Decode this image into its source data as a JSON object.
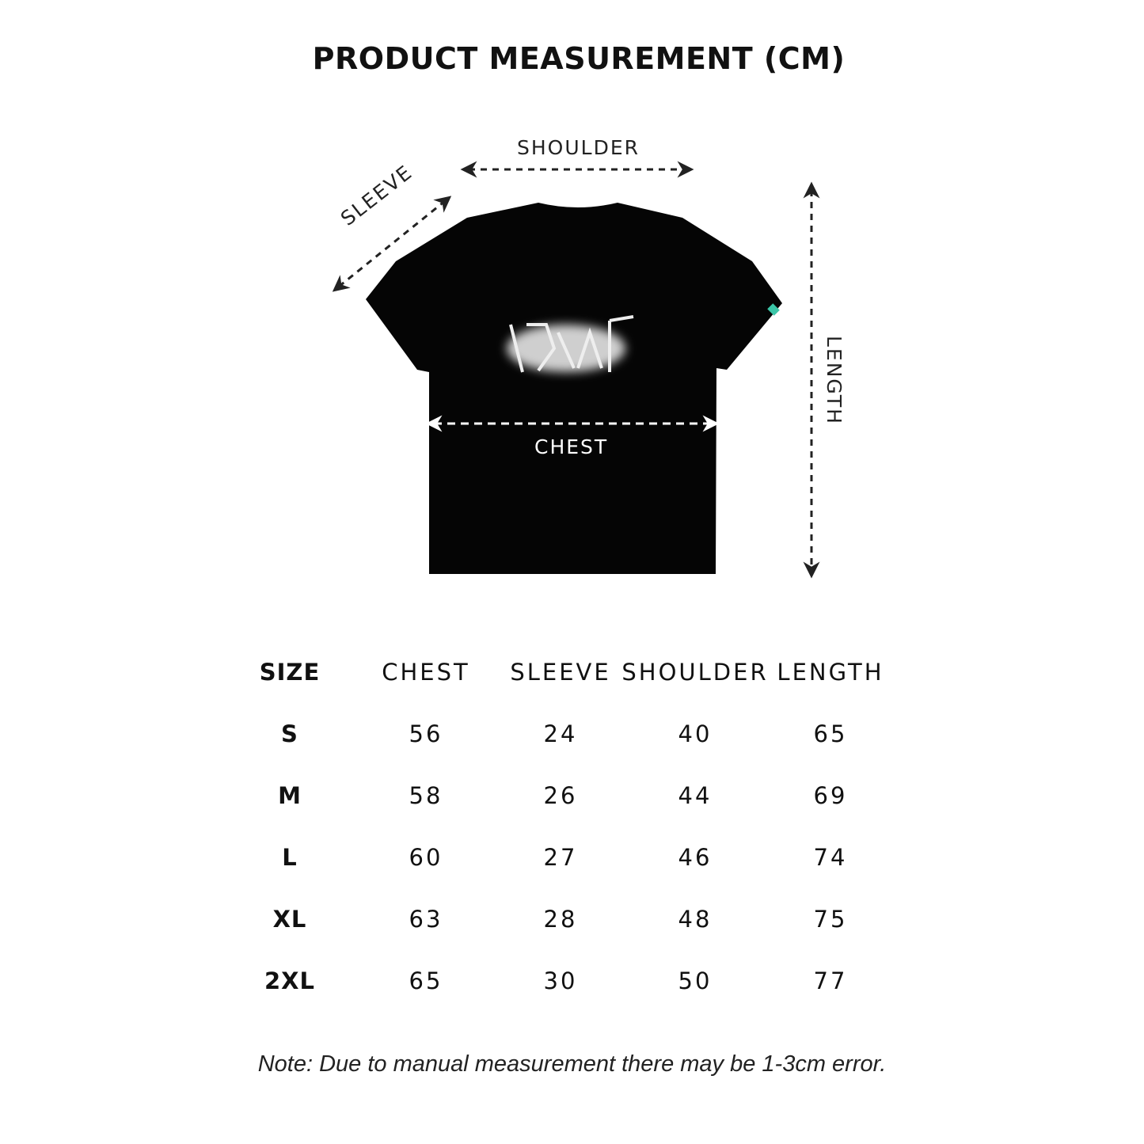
{
  "title": "PRODUCT MEASUREMENT (CM)",
  "diagram": {
    "labels": {
      "shoulder": "SHOULDER",
      "sleeve": "SLEEVE",
      "chest": "CHEST",
      "length": "LENGTH"
    },
    "shirt_color": "#050505",
    "logo_text": "EDLAE",
    "sleeve_tag_color": "#3cc6a8"
  },
  "table": {
    "headers": [
      "SIZE",
      "CHEST",
      "SLEEVE",
      "SHOULDER",
      "LENGTH"
    ],
    "rows": [
      [
        "S",
        "56",
        "24",
        "40",
        "65"
      ],
      [
        "M",
        "58",
        "26",
        "44",
        "69"
      ],
      [
        "L",
        "60",
        "27",
        "46",
        "74"
      ],
      [
        "XL",
        "63",
        "28",
        "48",
        "75"
      ],
      [
        "2XL",
        "65",
        "30",
        "50",
        "77"
      ]
    ]
  },
  "note": "Note: Due to manual measurement there may be 1-3cm error."
}
